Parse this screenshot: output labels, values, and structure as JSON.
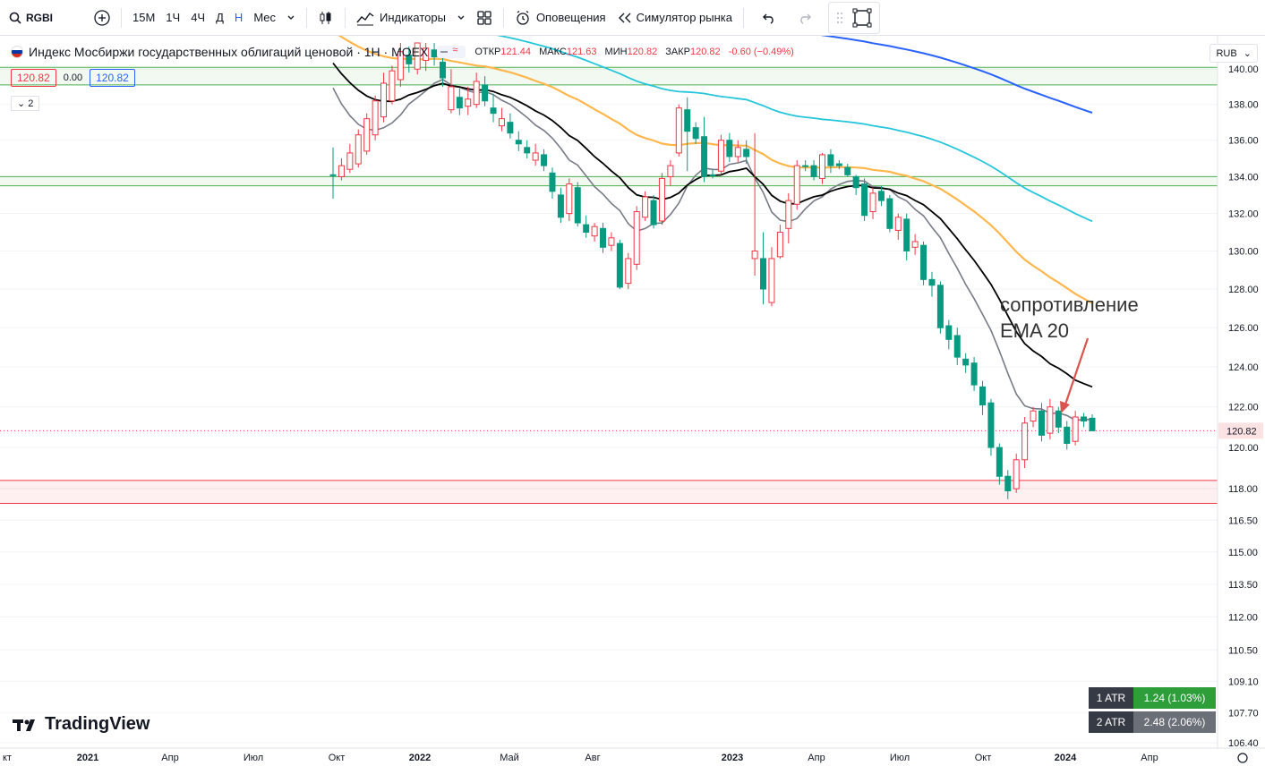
{
  "toolbar": {
    "symbol": "RGBI",
    "intervals": [
      "15М",
      "1Ч",
      "4Ч",
      "Д",
      "Н",
      "Мес"
    ],
    "active_interval": "Н",
    "indicators_label": "Индикаторы",
    "alerts_label": "Оповещения",
    "replay_label": "Симулятор рынка"
  },
  "legend": {
    "title": "Индекс Мосбиржи государственных облигаций ценовой · 1Н · MOEX",
    "open_label": "ОТКР",
    "open": "121.44",
    "high_label": "МАКС",
    "high": "121.63",
    "low_label": "МИН",
    "low": "120.82",
    "close_label": "ЗАКР",
    "close": "120.82",
    "change": "-0.60 (−0.49%)",
    "bid": "120.82",
    "spread": "0.00",
    "ask": "120.82",
    "collapsed_count": "2"
  },
  "currency": "RUB",
  "annotation": {
    "line1": "сопротивление",
    "line2": "EMA 20"
  },
  "atr": [
    {
      "label": "1 ATR",
      "value": "1.24 (1.03%)",
      "color": "#089981"
    },
    {
      "label": "2 ATR",
      "value": "2.48 (2.06%)",
      "color": "#787b86"
    }
  ],
  "branding": {
    "name": "TradingView"
  },
  "colors": {
    "up": "#089981",
    "down": "#f23645",
    "ema_fast": "#787b86",
    "ema20": "#000000",
    "ema50": "#ffb74d",
    "ema100": "#26c6da",
    "ema200": "#2962ff"
  },
  "chart_data": {
    "type": "candlestick",
    "y_axis": {
      "scale": "log",
      "range": [
        106.4,
        141.5
      ],
      "ticks": [
        "140.00",
        "138.00",
        "136.00",
        "134.00",
        "132.00",
        "130.00",
        "128.00",
        "126.00",
        "124.00",
        "122.00",
        "120.00",
        "118.00",
        "116.50",
        "115.00",
        "113.50",
        "112.00",
        "110.50",
        "109.10",
        "107.70",
        "106.40"
      ]
    },
    "x_axis": {
      "labels": [
        "кт",
        "2021",
        "Апр",
        "Июл",
        "Окт",
        "2022",
        "Май",
        "Авг",
        "2023",
        "Апр",
        "Июл",
        "Окт",
        "2024",
        "Апр"
      ]
    },
    "last_price": "120.82",
    "zones": [
      {
        "color": "green",
        "from": 139.1,
        "to": 140.1
      },
      {
        "color": "green",
        "from": 133.5,
        "to": 134.0
      },
      {
        "color": "red",
        "from": 117.3,
        "to": 118.4
      }
    ],
    "candles": [
      [
        134.1,
        134.1,
        135.6,
        132.8
      ],
      [
        134.6,
        134.0,
        135.0,
        133.8
      ],
      [
        135.3,
        134.4,
        135.8,
        134.2
      ],
      [
        136.3,
        134.7,
        136.6,
        134.5
      ],
      [
        137.2,
        135.4,
        137.5,
        135.2
      ],
      [
        138.2,
        136.3,
        138.5,
        136.0
      ],
      [
        139.2,
        137.3,
        139.8,
        137.0
      ],
      [
        139.9,
        138.2,
        140.2,
        138.0
      ],
      [
        141.0,
        139.4,
        141.5,
        139.0
      ],
      [
        140.3,
        140.8,
        141.3,
        139.8
      ],
      [
        141.5,
        140.0,
        141.5,
        139.7
      ],
      [
        141.2,
        140.5,
        141.5,
        139.9
      ],
      [
        140.7,
        141.1,
        141.5,
        140.2
      ],
      [
        139.5,
        140.4,
        140.8,
        139.0
      ],
      [
        139.0,
        137.7,
        140.0,
        137.5
      ],
      [
        137.8,
        138.4,
        138.9,
        137.4
      ],
      [
        138.3,
        137.9,
        139.0,
        137.4
      ],
      [
        139.3,
        138.0,
        139.8,
        137.8
      ],
      [
        138.2,
        139.1,
        139.6,
        137.9
      ],
      [
        137.5,
        137.8,
        138.6,
        137.0
      ],
      [
        137.2,
        136.8,
        137.8,
        136.5
      ],
      [
        136.4,
        137.0,
        137.5,
        136.1
      ],
      [
        135.8,
        136.0,
        136.5,
        135.4
      ],
      [
        135.3,
        135.6,
        136.0,
        135.0
      ],
      [
        135.3,
        134.9,
        135.8,
        134.6
      ],
      [
        134.6,
        135.2,
        135.5,
        134.3
      ],
      [
        133.2,
        134.2,
        134.5,
        132.8
      ],
      [
        131.8,
        133.0,
        133.4,
        131.5
      ],
      [
        133.6,
        132.0,
        133.9,
        131.6
      ],
      [
        131.5,
        133.4,
        133.7,
        131.3
      ],
      [
        131.0,
        131.4,
        131.9,
        130.7
      ],
      [
        131.3,
        130.8,
        131.5,
        130.5
      ],
      [
        130.2,
        131.2,
        131.5,
        129.9
      ],
      [
        130.7,
        130.3,
        131.0,
        130.0
      ],
      [
        128.1,
        130.4,
        130.6,
        128.0
      ],
      [
        129.6,
        128.3,
        129.9,
        128.0
      ],
      [
        132.1,
        129.3,
        132.4,
        129.0
      ],
      [
        132.9,
        131.8,
        133.2,
        131.6
      ],
      [
        131.4,
        132.7,
        133.0,
        131.2
      ],
      [
        133.9,
        131.6,
        134.2,
        131.4
      ],
      [
        134.6,
        134.0,
        134.9,
        133.5
      ],
      [
        137.8,
        135.3,
        138.0,
        135.1
      ],
      [
        136.5,
        137.7,
        138.4,
        134.3
      ],
      [
        136.1,
        136.7,
        137.0,
        135.8
      ],
      [
        134.0,
        136.2,
        137.3,
        133.7
      ],
      [
        134.1,
        134.1,
        134.4,
        133.9
      ],
      [
        136.0,
        134.3,
        136.3,
        134.1
      ],
      [
        135.1,
        136.0,
        136.4,
        134.8
      ],
      [
        135.6,
        135.1,
        136.0,
        134.8
      ],
      [
        135.1,
        135.5,
        136.0,
        134.7
      ],
      [
        130.0,
        129.6,
        136.4,
        128.7
      ],
      [
        128.0,
        129.6,
        131.0,
        127.2
      ],
      [
        129.6,
        127.3,
        130.2,
        127.1
      ],
      [
        131.0,
        129.7,
        131.4,
        129.6
      ],
      [
        132.7,
        131.2,
        133.1,
        130.4
      ],
      [
        134.6,
        132.5,
        134.9,
        132.2
      ],
      [
        134.6,
        134.6,
        134.9,
        134.3
      ],
      [
        134.0,
        134.6,
        134.9,
        133.8
      ],
      [
        135.2,
        133.9,
        135.3,
        133.6
      ],
      [
        134.6,
        135.2,
        135.5,
        134.2
      ],
      [
        134.6,
        134.7,
        134.9,
        134.4
      ],
      [
        134.1,
        134.5,
        134.7,
        134.0
      ],
      [
        133.4,
        134.0,
        134.1,
        133.0
      ],
      [
        131.9,
        133.6,
        133.9,
        131.6
      ],
      [
        133.1,
        132.1,
        133.4,
        131.7
      ],
      [
        132.7,
        133.2,
        133.5,
        132.4
      ],
      [
        131.2,
        132.8,
        133.0,
        131.0
      ],
      [
        131.8,
        131.1,
        132.0,
        130.6
      ],
      [
        130.0,
        131.7,
        132.0,
        129.5
      ],
      [
        130.5,
        130.2,
        130.9,
        129.8
      ],
      [
        128.5,
        130.3,
        130.5,
        128.2
      ],
      [
        128.2,
        128.5,
        128.9,
        127.6
      ],
      [
        126.0,
        128.2,
        128.4,
        125.7
      ],
      [
        125.4,
        126.1,
        126.4,
        124.9
      ],
      [
        124.5,
        125.6,
        126.0,
        124.1
      ],
      [
        124.1,
        124.4,
        124.7,
        123.7
      ],
      [
        123.1,
        124.2,
        124.5,
        122.8
      ],
      [
        122.1,
        123.0,
        123.3,
        121.6
      ],
      [
        120.0,
        122.2,
        122.4,
        119.6
      ],
      [
        118.6,
        120.0,
        120.2,
        118.2
      ],
      [
        117.9,
        118.6,
        118.9,
        117.5
      ],
      [
        119.4,
        118.0,
        119.7,
        117.8
      ],
      [
        121.2,
        119.4,
        121.5,
        119.0
      ],
      [
        121.8,
        121.3,
        122.0,
        121.0
      ],
      [
        120.6,
        121.8,
        122.2,
        120.3
      ],
      [
        122.0,
        120.7,
        122.4,
        120.4
      ],
      [
        121.0,
        121.8,
        122.0,
        120.7
      ],
      [
        120.2,
        121.0,
        121.3,
        119.9
      ],
      [
        121.5,
        120.3,
        121.8,
        120.1
      ],
      [
        121.3,
        121.5,
        121.7,
        121.0
      ],
      [
        120.82,
        121.44,
        121.63,
        120.82
      ]
    ],
    "indicators": [
      {
        "label": "EMA 20",
        "annotated": true
      }
    ]
  }
}
